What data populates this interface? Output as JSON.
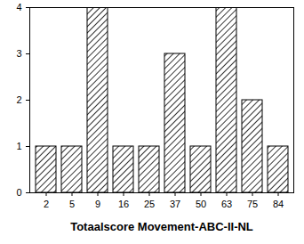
{
  "chart_data": {
    "type": "bar",
    "x_label": "Totaalscore Movement-ABC-II-NL",
    "categories": [
      "2",
      "5",
      "9",
      "16",
      "25",
      "37",
      "50",
      "63",
      "75",
      "84"
    ],
    "values": [
      1,
      1,
      4,
      1,
      1,
      3,
      1,
      4,
      2,
      1
    ],
    "color": "#000000",
    "ylim": [
      0,
      4
    ],
    "yticks": [
      0,
      1,
      2,
      3,
      4
    ],
    "grid": false
  }
}
